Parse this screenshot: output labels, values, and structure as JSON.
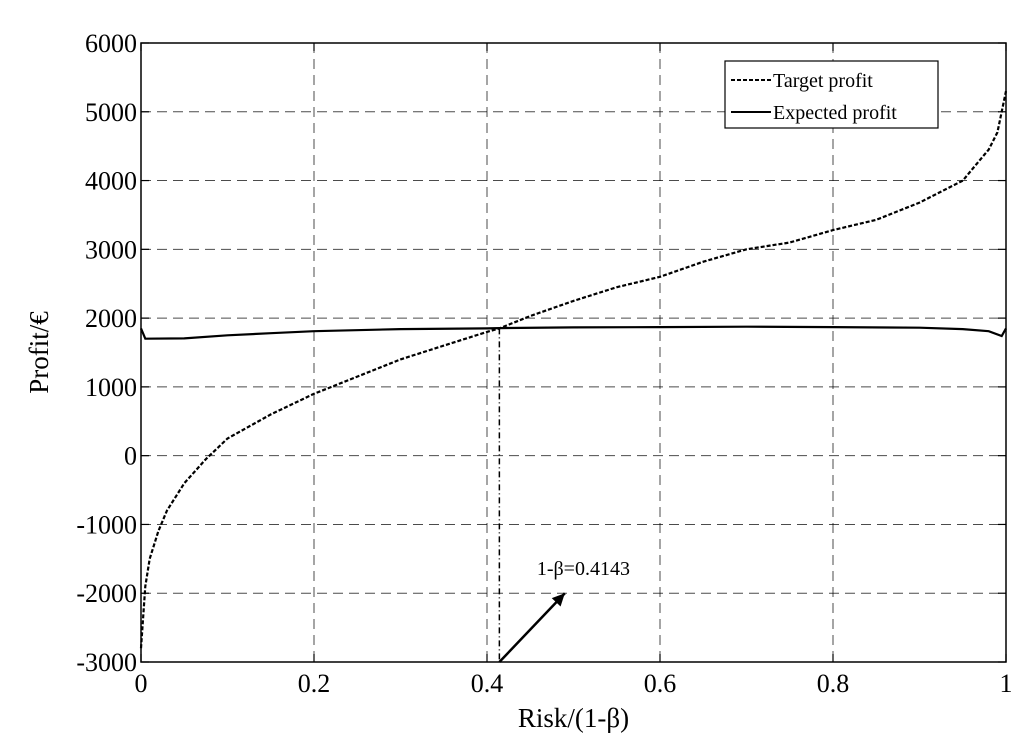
{
  "chart_data": {
    "type": "line",
    "title": "",
    "xlabel": "Risk/(1-β)",
    "ylabel": "Profit/€",
    "xlim": [
      0,
      1
    ],
    "ylim": [
      -3000,
      6000
    ],
    "x_ticks": [
      0,
      0.2,
      0.4,
      0.6,
      0.8,
      1
    ],
    "x_tick_labels": [
      "0",
      "0.2",
      "0.4",
      "0.6",
      "0.8",
      "1"
    ],
    "y_ticks": [
      -3000,
      -2000,
      -1000,
      0,
      1000,
      2000,
      3000,
      4000,
      5000,
      6000
    ],
    "y_tick_labels": [
      "-3000",
      "-2000",
      "-1000",
      "0",
      "1000",
      "2000",
      "3000",
      "4000",
      "5000",
      "6000"
    ],
    "grid": true,
    "legend_position": "top-right",
    "series": [
      {
        "name": "Target profit",
        "style": "dashed",
        "x": [
          0,
          0.005,
          0.01,
          0.02,
          0.03,
          0.05,
          0.075,
          0.1,
          0.15,
          0.2,
          0.25,
          0.3,
          0.35,
          0.4,
          0.4143,
          0.45,
          0.5,
          0.55,
          0.6,
          0.65,
          0.7,
          0.75,
          0.8,
          0.85,
          0.9,
          0.95,
          0.97,
          0.98,
          0.99,
          1.0
        ],
        "y": [
          -2800,
          -1900,
          -1500,
          -1100,
          -800,
          -400,
          -50,
          250,
          600,
          900,
          1150,
          1400,
          1600,
          1800,
          1850,
          2030,
          2250,
          2450,
          2600,
          2820,
          3000,
          3100,
          3280,
          3430,
          3680,
          4000,
          4300,
          4450,
          4700,
          5300
        ]
      },
      {
        "name": "Expected profit",
        "style": "solid",
        "x": [
          0,
          0.005,
          0.05,
          0.1,
          0.15,
          0.2,
          0.3,
          0.4,
          0.4143,
          0.5,
          0.6,
          0.7,
          0.8,
          0.9,
          0.95,
          0.98,
          0.995,
          1.0
        ],
        "y": [
          1850,
          1700,
          1705,
          1750,
          1780,
          1810,
          1840,
          1850,
          1855,
          1865,
          1870,
          1875,
          1870,
          1860,
          1840,
          1810,
          1740,
          1850
        ]
      }
    ],
    "annotation": {
      "text": "1-β=0.4143",
      "x": 0.4143,
      "y": 1850,
      "arrow_tail": [
        0.4143,
        -3000
      ],
      "arrow_head": [
        0.49,
        -2000
      ]
    }
  }
}
